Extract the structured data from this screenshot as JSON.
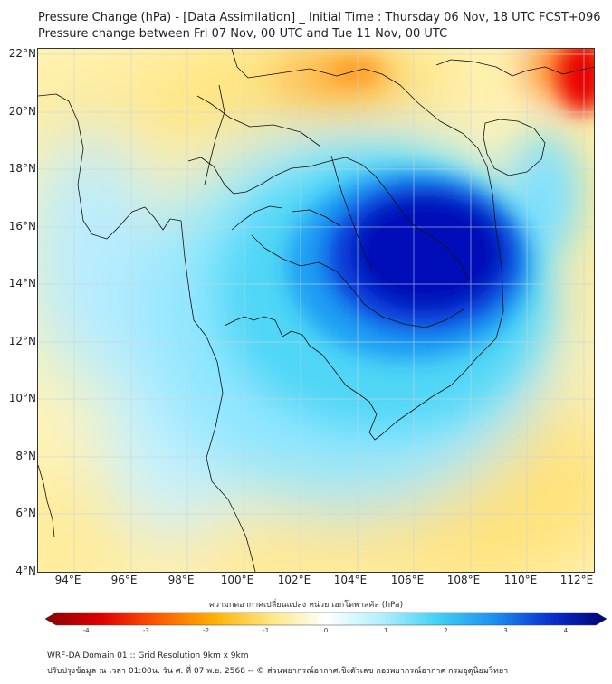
{
  "header": {
    "title_line1": "Pressure Change (hPa) - [Data Assimilation] _ Initial Time : Thursday 06 Nov, 18 UTC FCST+096",
    "title_line2": "Pressure change between Fri 07 Nov, 00 UTC and Tue 11 Nov, 00 UTC"
  },
  "axes": {
    "lat_labels": [
      "22°N",
      "20°N",
      "18°N",
      "16°N",
      "14°N",
      "12°N",
      "10°N",
      "8°N",
      "6°N",
      "4°N"
    ],
    "lon_labels": [
      "94°E",
      "96°E",
      "98°E",
      "100°E",
      "102°E",
      "104°E",
      "106°E",
      "108°E",
      "110°E",
      "112°E"
    ]
  },
  "colorbar": {
    "title": "ความกดอากาศเปลี่ยนแปลง หน่วย เฮกโตพาสคัล (hPa)",
    "ticks": [
      "-4",
      "-3",
      "-2",
      "-1",
      "0",
      "1",
      "2",
      "3",
      "4"
    ],
    "min": -4.5,
    "max": 4.5
  },
  "footer": {
    "line1": "WRF-DA Domain 01 :: Grid Resolution 9km x 9km",
    "line2": "ปรับปรุงข้อมูล ณ เวลา 01:00น. วัน ศ. ที่ 07 พ.ย. 2568 -- © ส่วนพยากรณ์อากาศเชิงตัวเลข กองพยากรณ์อากาศ กรมอุตุนิยมวิทยา"
  },
  "colors": {
    "neg_strong": "#a00000",
    "neg_mid": "#ff3000",
    "neg_weak": "#ffd040",
    "neg_faint": "#fff5b0",
    "zero": "#ffffff",
    "pos_faint": "#bff2ff",
    "pos_weak": "#4fd9f7",
    "pos_mid": "#1a7cf0",
    "pos_strong": "#00007a"
  }
}
